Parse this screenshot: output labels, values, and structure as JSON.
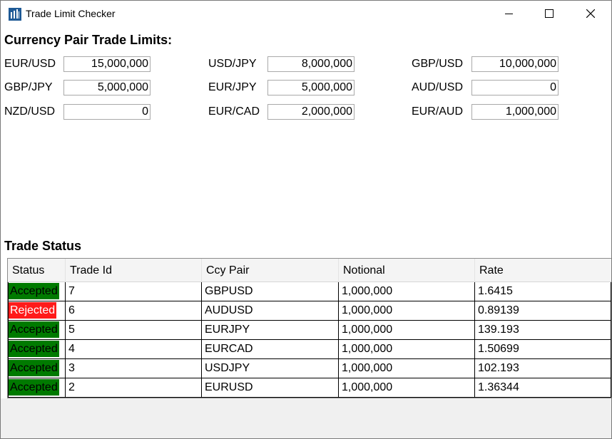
{
  "window": {
    "title": "Trade Limit Checker",
    "icon": "app-chart-icon",
    "controls": [
      "minimize-icon",
      "maximize-icon",
      "close-icon"
    ]
  },
  "limits": {
    "heading": "Currency Pair Trade Limits:",
    "pairs": [
      {
        "pair": "EUR/USD",
        "limit": "15,000,000"
      },
      {
        "pair": "USD/JPY",
        "limit": "8,000,000"
      },
      {
        "pair": "GBP/USD",
        "limit": "10,000,000"
      },
      {
        "pair": "GBP/JPY",
        "limit": "5,000,000"
      },
      {
        "pair": "EUR/JPY",
        "limit": "5,000,000"
      },
      {
        "pair": "AUD/USD",
        "limit": "0"
      },
      {
        "pair": "NZD/USD",
        "limit": "0"
      },
      {
        "pair": "EUR/CAD",
        "limit": "2,000,000"
      },
      {
        "pair": "EUR/AUD",
        "limit": "1,000,000"
      }
    ]
  },
  "trades": {
    "heading": "Trade Status",
    "columns": [
      "Status",
      "Trade Id",
      "Ccy Pair",
      "Notional",
      "Rate"
    ],
    "status_colors": {
      "Accepted": "#007a00",
      "Rejected": "#ff1a1a"
    },
    "rows": [
      {
        "status": "Accepted",
        "id": "7",
        "pair": "GBPUSD",
        "notional": "1,000,000",
        "rate": "1.6415"
      },
      {
        "status": "Rejected",
        "id": "6",
        "pair": "AUDUSD",
        "notional": "1,000,000",
        "rate": "0.89139"
      },
      {
        "status": "Accepted",
        "id": "5",
        "pair": "EURJPY",
        "notional": "1,000,000",
        "rate": "139.193"
      },
      {
        "status": "Accepted",
        "id": "4",
        "pair": "EURCAD",
        "notional": "1,000,000",
        "rate": "1.50699"
      },
      {
        "status": "Accepted",
        "id": "3",
        "pair": "USDJPY",
        "notional": "1,000,000",
        "rate": "102.193"
      },
      {
        "status": "Accepted",
        "id": "2",
        "pair": "EURUSD",
        "notional": "1,000,000",
        "rate": "1.36344"
      }
    ]
  }
}
